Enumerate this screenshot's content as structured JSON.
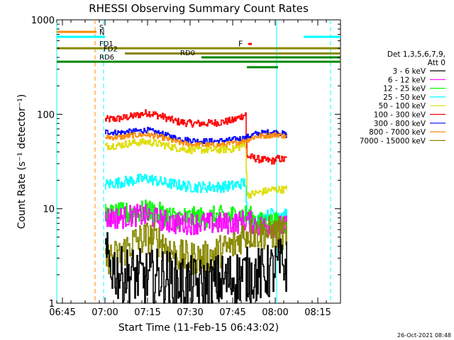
{
  "chart_data": {
    "type": "line",
    "title": "RHESSI Observing Summary Count Rates",
    "xlabel": "Start Time (11-Feb-15 06:43:02)",
    "ylabel": "Count Rate (s⁻¹ detector⁻¹)",
    "scale": "log",
    "ylim": [
      1,
      1000
    ],
    "xlim_minutes": [
      0,
      100
    ],
    "x_ticks": [
      {
        "label": "06:45",
        "m": 2
      },
      {
        "label": "07:00",
        "m": 17
      },
      {
        "label": "07:15",
        "m": 32
      },
      {
        "label": "07:30",
        "m": 47
      },
      {
        "label": "07:45",
        "m": 62
      },
      {
        "label": "08:00",
        "m": 77
      },
      {
        "label": "08:15",
        "m": 92
      }
    ],
    "y_ticks": [
      {
        "label": "1",
        "v": 1
      },
      {
        "label": "10",
        "v": 10
      },
      {
        "label": "100",
        "v": 100
      },
      {
        "label": "1000",
        "v": 1000
      }
    ],
    "legend": {
      "position": "right",
      "header": [
        "Det 1,3,5,6,7,9,",
        "Att 0"
      ],
      "entries": [
        {
          "label": "3 - 6 keV",
          "color": "#000000"
        },
        {
          "label": "6 - 12 keV",
          "color": "#ff00ff"
        },
        {
          "label": "12 - 25 keV",
          "color": "#00ff00"
        },
        {
          "label": "25 - 50 keV",
          "color": "#00ffff"
        },
        {
          "label": "50 - 100 keV",
          "color": "#dddd00"
        },
        {
          "label": "100 - 300 keV",
          "color": "#ff0000"
        },
        {
          "label": "300 - 800 keV",
          "color": "#0000ff"
        },
        {
          "label": "800 - 7000 keV",
          "color": "#ff8800"
        },
        {
          "label": "7000 - 15000 keV",
          "color": "#888800"
        }
      ]
    },
    "series": [
      {
        "name": "100 - 300 keV",
        "color": "#ff0000",
        "noise": 0.04,
        "points": [
          [
            17,
            88
          ],
          [
            22,
            90
          ],
          [
            27,
            96
          ],
          [
            32,
            104
          ],
          [
            37,
            95
          ],
          [
            42,
            84
          ],
          [
            47,
            80
          ],
          [
            52,
            80
          ],
          [
            57,
            82
          ],
          [
            62,
            86
          ],
          [
            66.5,
            100
          ],
          [
            67,
            36
          ],
          [
            72,
            33
          ],
          [
            76,
            32
          ],
          [
            78,
            34
          ],
          [
            80,
            33
          ],
          [
            81,
            34
          ]
        ]
      },
      {
        "name": "300 - 800 keV",
        "color": "#0000ff",
        "noise": 0.03,
        "points": [
          [
            17,
            65
          ],
          [
            22,
            64
          ],
          [
            27,
            66
          ],
          [
            32,
            68
          ],
          [
            37,
            62
          ],
          [
            42,
            56
          ],
          [
            47,
            53
          ],
          [
            52,
            52
          ],
          [
            57,
            52
          ],
          [
            62,
            54
          ],
          [
            66,
            56
          ],
          [
            70,
            62
          ],
          [
            75,
            65
          ],
          [
            78,
            64
          ],
          [
            80,
            62
          ],
          [
            81,
            60
          ]
        ]
      },
      {
        "name": "800 - 7000 keV",
        "color": "#ff8800",
        "noise": 0.03,
        "points": [
          [
            17,
            57
          ],
          [
            22,
            57
          ],
          [
            27,
            60
          ],
          [
            32,
            61
          ],
          [
            37,
            57
          ],
          [
            42,
            51
          ],
          [
            47,
            48
          ],
          [
            52,
            47
          ],
          [
            57,
            47
          ],
          [
            62,
            49
          ],
          [
            66,
            52
          ],
          [
            70,
            58
          ],
          [
            75,
            60
          ],
          [
            78,
            61
          ],
          [
            80,
            59
          ],
          [
            81,
            57
          ]
        ]
      },
      {
        "name": "50 - 100 keV",
        "color": "#dddd00",
        "noise": 0.04,
        "points": [
          [
            17,
            46
          ],
          [
            22,
            47
          ],
          [
            27,
            50
          ],
          [
            32,
            51
          ],
          [
            37,
            48
          ],
          [
            42,
            44
          ],
          [
            47,
            42
          ],
          [
            52,
            42
          ],
          [
            57,
            42
          ],
          [
            62,
            43
          ],
          [
            66.5,
            47
          ],
          [
            67,
            14
          ],
          [
            72,
            15
          ],
          [
            76,
            16
          ],
          [
            78,
            16
          ],
          [
            80,
            16
          ],
          [
            81,
            16
          ]
        ]
      },
      {
        "name": "25 - 50 keV",
        "color": "#00ffff",
        "noise": 0.06,
        "points": [
          [
            17,
            18
          ],
          [
            22,
            19
          ],
          [
            27,
            20
          ],
          [
            32,
            21
          ],
          [
            37,
            19
          ],
          [
            42,
            18
          ],
          [
            47,
            17
          ],
          [
            52,
            17
          ],
          [
            57,
            17
          ],
          [
            62,
            17.5
          ],
          [
            66.5,
            19
          ],
          [
            67,
            7
          ],
          [
            72,
            8
          ],
          [
            76,
            9
          ],
          [
            78,
            9
          ],
          [
            80,
            9
          ],
          [
            81,
            9
          ]
        ]
      },
      {
        "name": "12 - 25 keV",
        "color": "#00ff00",
        "noise": 0.12,
        "points": [
          [
            17,
            8.5
          ],
          [
            22,
            8.8
          ],
          [
            27,
            9
          ],
          [
            32,
            9.5
          ],
          [
            37,
            8.8
          ],
          [
            42,
            8
          ],
          [
            47,
            8
          ],
          [
            52,
            8
          ],
          [
            57,
            8.2
          ],
          [
            62,
            8.4
          ],
          [
            67,
            8.5
          ],
          [
            72,
            7
          ],
          [
            76,
            7
          ],
          [
            78,
            7
          ],
          [
            81,
            7
          ]
        ]
      },
      {
        "name": "6 - 12 keV",
        "color": "#ff00ff",
        "noise": 0.12,
        "points": [
          [
            17,
            8
          ],
          [
            22,
            8
          ],
          [
            27,
            8.5
          ],
          [
            32,
            8.4
          ],
          [
            37,
            7.5
          ],
          [
            42,
            7
          ],
          [
            47,
            7
          ],
          [
            52,
            7
          ],
          [
            57,
            7
          ],
          [
            62,
            7
          ],
          [
            67,
            7.5
          ],
          [
            72,
            6.5
          ],
          [
            76,
            6.5
          ],
          [
            78,
            6.5
          ],
          [
            81,
            6.5
          ]
        ]
      },
      {
        "name": "7000 - 15000 keV",
        "color": "#888800",
        "noise": 0.18,
        "points": [
          [
            17,
            3
          ],
          [
            22,
            3.2
          ],
          [
            27,
            4.5
          ],
          [
            32,
            5
          ],
          [
            37,
            4.5
          ],
          [
            42,
            3.2
          ],
          [
            47,
            3
          ],
          [
            52,
            3
          ],
          [
            57,
            3.5
          ],
          [
            62,
            4
          ],
          [
            66,
            5.5
          ],
          [
            72,
            5.5
          ],
          [
            76,
            5.5
          ],
          [
            78,
            5.5
          ],
          [
            81,
            5.5
          ]
        ]
      },
      {
        "name": "3 - 6 keV",
        "color": "#000000",
        "noise": 0.3,
        "points": [
          [
            17,
            3
          ],
          [
            22,
            2
          ],
          [
            27,
            2
          ],
          [
            32,
            1.8
          ],
          [
            37,
            2
          ],
          [
            42,
            1.7
          ],
          [
            47,
            1.6
          ],
          [
            52,
            1.5
          ],
          [
            57,
            1.7
          ],
          [
            62,
            1.8
          ],
          [
            66,
            2
          ],
          [
            72,
            2
          ],
          [
            76,
            2.2
          ],
          [
            78,
            2.5
          ],
          [
            81,
            2.5
          ]
        ]
      }
    ],
    "flag_bars": [
      {
        "label": "S",
        "color": "#ff8800",
        "y": 745,
        "x1": 0,
        "x2": 14
      },
      {
        "label": "N",
        "color": "#00ffff",
        "y": 660,
        "x1": 0,
        "x2": 17
      },
      {
        "label": "N",
        "color": "#00ffff",
        "y": 660,
        "x1": 87,
        "x2": 100,
        "nolabel": true
      },
      {
        "label": "FD1",
        "color": "#888800",
        "y": 500,
        "x1": 0,
        "x2": 100
      },
      {
        "label": "FD2",
        "color": "#888800",
        "y": 440,
        "x1": 24,
        "x2": 100
      },
      {
        "label": "RD0",
        "color": "#008800",
        "y": 400,
        "x1": 51,
        "x2": 100
      },
      {
        "label": "RD6",
        "color": "#008800",
        "y": 360,
        "x1": 0,
        "x2": 100
      },
      {
        "label": "RD6",
        "color": "#008800",
        "y": 315,
        "x1": 67,
        "x2": 78,
        "nolabel": true
      }
    ],
    "flare_marker": {
      "label": "F",
      "color": "#ff0000",
      "x": 64,
      "y": 560
    },
    "vlines": [
      {
        "m": 0,
        "color": "#00ffff",
        "style": "solid"
      },
      {
        "m": 13.5,
        "color": "#ff8800",
        "style": "dashed"
      },
      {
        "m": 16.5,
        "color": "#00ffff",
        "style": "dashed"
      },
      {
        "m": 77.5,
        "color": "#00ffff",
        "style": "solid"
      },
      {
        "m": 96.5,
        "color": "#00ffff",
        "style": "dashed"
      }
    ],
    "footer_date": "26-Oct-2021 08:48"
  }
}
